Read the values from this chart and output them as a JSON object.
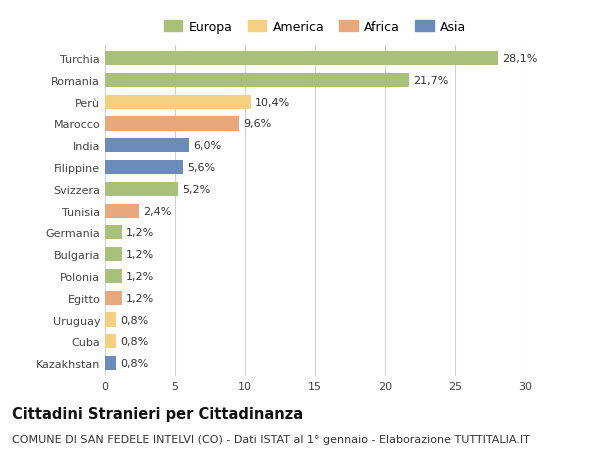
{
  "countries": [
    "Turchia",
    "Romania",
    "Perù",
    "Marocco",
    "India",
    "Filippine",
    "Svizzera",
    "Tunisia",
    "Germania",
    "Bulgaria",
    "Polonia",
    "Egitto",
    "Uruguay",
    "Cuba",
    "Kazakhstan"
  ],
  "values": [
    28.1,
    21.7,
    10.4,
    9.6,
    6.0,
    5.6,
    5.2,
    2.4,
    1.2,
    1.2,
    1.2,
    1.2,
    0.8,
    0.8,
    0.8
  ],
  "labels": [
    "28,1%",
    "21,7%",
    "10,4%",
    "9,6%",
    "6,0%",
    "5,6%",
    "5,2%",
    "2,4%",
    "1,2%",
    "1,2%",
    "1,2%",
    "1,2%",
    "0,8%",
    "0,8%",
    "0,8%"
  ],
  "continents": [
    "Europa",
    "Europa",
    "America",
    "Africa",
    "Asia",
    "Asia",
    "Europa",
    "Africa",
    "Europa",
    "Europa",
    "Europa",
    "Africa",
    "America",
    "America",
    "Asia"
  ],
  "colors": {
    "Europa": "#a8c07a",
    "America": "#f5d080",
    "Africa": "#e8a87c",
    "Asia": "#6b8cba"
  },
  "legend_order": [
    "Europa",
    "America",
    "Africa",
    "Asia"
  ],
  "legend_colors": [
    "#a8c07a",
    "#f5d080",
    "#e8a87c",
    "#6b8cba"
  ],
  "xlim": [
    0,
    30
  ],
  "xticks": [
    0,
    5,
    10,
    15,
    20,
    25,
    30
  ],
  "background_color": "#ffffff",
  "grid_color": "#d0d0d0",
  "title": "Cittadini Stranieri per Cittadinanza",
  "subtitle": "COMUNE DI SAN FEDELE INTELVI (CO) - Dati ISTAT al 1° gennaio - Elaborazione TUTTITALIA.IT",
  "title_fontsize": 10.5,
  "subtitle_fontsize": 8,
  "bar_height": 0.65,
  "label_fontsize": 8,
  "tick_fontsize": 8,
  "legend_fontsize": 9
}
